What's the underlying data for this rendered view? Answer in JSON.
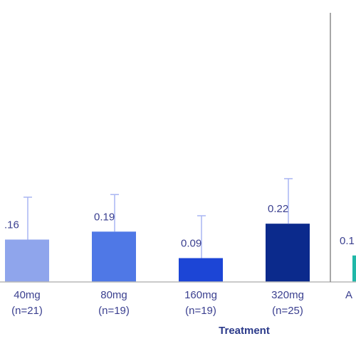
{
  "chart_data": {
    "type": "bar",
    "xlabel": "Treatment",
    "categories": [
      {
        "line1": "40mg",
        "line2": "(n=21)"
      },
      {
        "line1": "80mg",
        "line2": "(n=19)"
      },
      {
        "line1": "160mg",
        "line2": "(n=19)"
      },
      {
        "line1": "320mg",
        "line2": "(n=25)"
      },
      {
        "line1": "A",
        "line2": ""
      }
    ],
    "values": [
      0.16,
      0.19,
      0.09,
      0.22,
      0.1
    ],
    "value_labels": [
      ".16",
      "0.19",
      "0.09",
      "0.22",
      "0.1"
    ],
    "error_upper": [
      0.32,
      0.33,
      0.25,
      0.39,
      null
    ],
    "colors": [
      "#8fa5ec",
      "#4f78e6",
      "#1c45d6",
      "#0b2a8c",
      "#20b8a8"
    ],
    "ylim": [
      0,
      1.0
    ],
    "grid": false
  }
}
